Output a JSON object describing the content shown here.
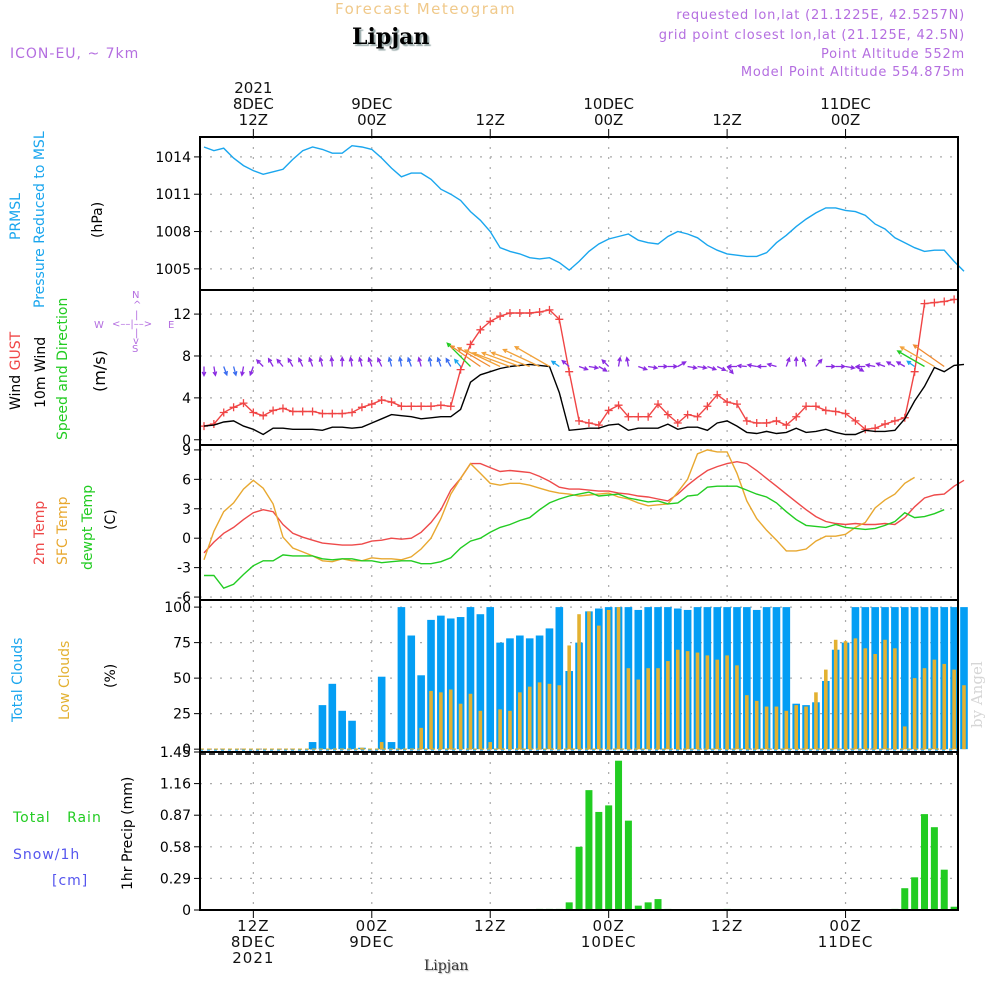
{
  "header": {
    "title": "Forecast Meteogram",
    "location": "Lipjan",
    "model": "ICON-EU, ~ 7km",
    "requested": "requested lon,lat (21.1225E, 42.5257N)",
    "grid_point": "grid point closest lon,lat (21.125E, 42.5N)",
    "point_altitude": "Point Altitude 552m",
    "model_altitude": "Model Point Altitude 554.875m"
  },
  "footer": {
    "location": "Lipjan",
    "watermark": "by Angel"
  },
  "colors": {
    "pressure": "#1aa6ee",
    "gust": "#f04545",
    "wind": "#000000",
    "temp2m": "#ee4a4a",
    "sfc": "#e8a830",
    "dewpt": "#22cc22",
    "total_clouds": "#049ef4",
    "low_clouds": "#e3b131",
    "rain": "#22cc22",
    "snow": "#5555ee",
    "meta": "#b46ee0",
    "compass": "#b46ee0"
  },
  "top_axis": [
    {
      "lines": [
        "2021",
        "8DEC",
        "12Z"
      ],
      "hour": 5
    },
    {
      "lines": [
        "9DEC",
        "00Z"
      ],
      "hour": 17
    },
    {
      "lines": [
        "12Z"
      ],
      "hour": 29
    },
    {
      "lines": [
        "10DEC",
        "00Z"
      ],
      "hour": 41
    },
    {
      "lines": [
        "12Z"
      ],
      "hour": 53
    },
    {
      "lines": [
        "11DEC",
        "00Z"
      ],
      "hour": 65
    }
  ],
  "bottom_axis": [
    {
      "lines": [
        "12Z",
        "8DEC",
        "2021"
      ],
      "hour": 5
    },
    {
      "lines": [
        "00Z",
        "9DEC"
      ],
      "hour": 17
    },
    {
      "lines": [
        "12Z"
      ],
      "hour": 29
    },
    {
      "lines": [
        "00Z",
        "10DEC"
      ],
      "hour": 41
    },
    {
      "lines": [
        "12Z"
      ],
      "hour": 53
    },
    {
      "lines": [
        "00Z",
        "11DEC"
      ],
      "hour": 65
    }
  ],
  "labels": {
    "pressure": {
      "l1": "PRMSL",
      "l2": "Pressure Reduced to MSL",
      "unit": "(hPa)"
    },
    "wind": {
      "gust_a": "Wind ",
      "gust_b": "GUST",
      "wind": "10m Wind",
      "dir": "Speed and Direction",
      "unit": "(m/s)"
    },
    "compass": {
      "n": "N",
      "s": "S",
      "e": "E",
      "w": "W"
    },
    "temp": {
      "t2m": "2m Temp",
      "sfc": "SFC Temp",
      "dew": "dewpt Temp",
      "unit": "(C)"
    },
    "clouds": {
      "total": "Total Clouds",
      "low": "Low Clouds",
      "unit": "(%)"
    },
    "precip": {
      "rain_a": "Total",
      "rain_b": "Rain",
      "snow": "Snow/1h",
      "snow_unit": "[cm]",
      "unit": "1hr Precip (mm)"
    }
  },
  "chart_data": [
    {
      "type": "line",
      "title": "PRMSL Pressure Reduced to MSL",
      "ylabel": "(hPa)",
      "ylim": [
        1003.3,
        1015.6
      ],
      "yticks": [
        1005,
        1008,
        1011,
        1014
      ],
      "x_start": "8DEC 07Z",
      "x_step_hours": 1,
      "grid": true,
      "series": [
        {
          "name": "PRMSL",
          "values": [
            1014.8,
            1014.5,
            1014.7,
            1013.9,
            1013.3,
            1012.9,
            1012.6,
            1012.8,
            1013.0,
            1013.8,
            1014.5,
            1014.8,
            1014.6,
            1014.3,
            1014.3,
            1014.9,
            1014.8,
            1014.6,
            1013.9,
            1013.1,
            1012.4,
            1012.7,
            1012.7,
            1012.2,
            1011.4,
            1011.0,
            1010.5,
            1009.6,
            1008.9,
            1008.0,
            1006.7,
            1006.4,
            1006.2,
            1005.9,
            1005.8,
            1005.9,
            1005.5,
            1004.9,
            1005.6,
            1006.4,
            1007.0,
            1007.4,
            1007.6,
            1007.8,
            1007.3,
            1007.1,
            1007.0,
            1007.6,
            1008.0,
            1007.8,
            1007.5,
            1006.9,
            1006.5,
            1006.2,
            1006.1,
            1006.0,
            1006.0,
            1006.3,
            1007.1,
            1007.7,
            1008.4,
            1009.0,
            1009.5,
            1009.9,
            1009.9,
            1009.7,
            1009.6,
            1009.3,
            1008.6,
            1008.2,
            1007.5,
            1007.1,
            1006.7,
            1006.4,
            1006.5,
            1006.5,
            1005.6,
            1004.8
          ]
        }
      ]
    },
    {
      "type": "line",
      "title": "Wind GUST / 10m Wind Speed and Direction",
      "ylabel": "(m/s)",
      "ylim": [
        -0.5,
        14.3
      ],
      "yticks": [
        0,
        4,
        8,
        12
      ],
      "x_start": "8DEC 07Z",
      "x_step_hours": 1,
      "grid": true,
      "series": [
        {
          "name": "Wind GUST",
          "values": [
            1.3,
            1.5,
            2.6,
            3.1,
            3.5,
            2.6,
            2.3,
            2.8,
            3.0,
            2.7,
            2.7,
            2.7,
            2.5,
            2.5,
            2.5,
            2.6,
            3.1,
            3.4,
            3.8,
            3.6,
            3.2,
            3.2,
            3.2,
            3.2,
            3.3,
            3.2,
            6.7,
            9.1,
            10.5,
            11.3,
            11.8,
            12.1,
            12.1,
            12.1,
            12.2,
            12.4,
            11.5,
            6.5,
            1.8,
            1.6,
            1.4,
            2.8,
            3.3,
            2.2,
            2.2,
            2.2,
            3.4,
            2.4,
            1.6,
            2.4,
            2.2,
            3.2,
            4.3,
            3.6,
            3.4,
            1.8,
            1.6,
            1.6,
            1.8,
            1.4,
            2.2,
            3.2,
            3.2,
            2.8,
            2.7,
            2.5,
            1.8,
            1.0,
            1.1,
            1.5,
            1.8,
            2.1,
            6.5,
            13.0,
            13.1,
            13.2,
            13.4
          ]
        },
        {
          "name": "10m Wind",
          "values": [
            1.3,
            1.4,
            1.7,
            1.8,
            1.3,
            1.0,
            0.5,
            1.1,
            1.1,
            1.0,
            1.0,
            1.0,
            0.9,
            1.2,
            1.2,
            1.1,
            1.2,
            1.6,
            2.0,
            2.4,
            2.3,
            2.2,
            2.0,
            2.1,
            2.2,
            2.2,
            2.9,
            5.5,
            6.2,
            6.5,
            6.8,
            7.0,
            7.1,
            7.2,
            7.1,
            7.0,
            4.5,
            0.9,
            1.0,
            1.1,
            1.1,
            1.4,
            1.5,
            0.9,
            1.1,
            1.1,
            1.1,
            1.5,
            1.0,
            1.2,
            1.2,
            0.9,
            1.6,
            1.8,
            1.3,
            0.7,
            0.6,
            0.8,
            0.6,
            0.7,
            1.1,
            0.7,
            0.8,
            1.0,
            0.7,
            0.5,
            0.5,
            0.9,
            0.8,
            0.8,
            0.9,
            2.0,
            3.7,
            5.1,
            6.9,
            6.5,
            7.1,
            7.2
          ]
        }
      ],
      "direction_arrows": {
        "note": "arrow direction in degrees (0=N up, 90=E) the arrow points to, colored by speed",
        "points_to_deg": [
          180,
          170,
          160,
          165,
          190,
          200,
          315,
          330,
          320,
          330,
          335,
          340,
          345,
          355,
          0,
          350,
          345,
          340,
          335,
          345,
          350,
          340,
          345,
          350,
          340,
          330,
          320,
          315,
          305,
          300,
          295,
          290,
          290,
          290,
          295,
          300,
          305,
          310,
          110,
          100,
          120,
          315,
          10,
          350,
          110,
          100,
          90,
          90,
          60,
          100,
          100,
          110,
          115,
          140,
          270,
          275,
          280,
          270,
          285,
          20,
          0,
          340,
          40,
          90,
          90,
          100,
          120,
          270,
          280,
          290,
          300,
          300,
          305,
          300,
          300,
          305
        ]
      }
    },
    {
      "type": "line",
      "title": "2m Temp / SFC Temp / dewpt Temp",
      "ylabel": "(C)",
      "ylim": [
        -6.3,
        9.5
      ],
      "yticks": [
        -6,
        -3,
        0,
        3,
        6,
        9
      ],
      "x_start": "8DEC 07Z",
      "x_step_hours": 1,
      "grid": true,
      "series": [
        {
          "name": "2m Temp",
          "values": [
            -1.5,
            -0.4,
            0.5,
            1.1,
            1.9,
            2.6,
            2.9,
            2.7,
            1.4,
            0.5,
            0.1,
            -0.2,
            -0.5,
            -0.6,
            -0.7,
            -0.7,
            -0.6,
            -0.3,
            -0.2,
            0.0,
            -0.1,
            0.0,
            0.6,
            1.6,
            2.9,
            4.9,
            6.1,
            7.6,
            7.6,
            7.2,
            6.8,
            6.9,
            6.8,
            6.7,
            6.3,
            5.8,
            5.2,
            5.0,
            5.0,
            4.9,
            4.8,
            4.8,
            4.6,
            4.5,
            4.3,
            4.2,
            4.0,
            3.8,
            4.5,
            5.4,
            6.2,
            6.9,
            7.3,
            7.6,
            7.8,
            7.6,
            6.9,
            6.1,
            5.3,
            4.5,
            3.7,
            2.9,
            2.2,
            1.7,
            1.5,
            1.4,
            1.5,
            1.4,
            1.4,
            1.5,
            1.4,
            2.1,
            3.2,
            4.1,
            4.4,
            4.5,
            5.3,
            5.9
          ]
        },
        {
          "name": "SFC Temp",
          "values": [
            -2.2,
            0.7,
            2.7,
            3.6,
            5.0,
            5.9,
            5.1,
            3.5,
            0.1,
            -1.0,
            -1.4,
            -1.8,
            -2.3,
            -2.4,
            -2.1,
            -2.3,
            -2.3,
            -2.0,
            -2.1,
            -2.1,
            -2.2,
            -1.9,
            -1.1,
            0.0,
            2.0,
            4.5,
            6.1,
            7.6,
            6.6,
            5.6,
            5.4,
            5.6,
            5.6,
            5.4,
            5.1,
            4.8,
            4.6,
            4.5,
            4.3,
            4.4,
            4.5,
            4.6,
            4.2,
            4.0,
            3.6,
            3.3,
            3.4,
            3.5,
            4.7,
            6.0,
            8.6,
            9.0,
            8.8,
            8.8,
            6.6,
            3.8,
            2.0,
            0.8,
            -0.2,
            -1.3,
            -1.3,
            -1.1,
            -0.3,
            0.2,
            0.2,
            0.4,
            1.1,
            1.6,
            3.1,
            3.9,
            4.5,
            5.6,
            6.2
          ]
        },
        {
          "name": "dewpt Temp",
          "values": [
            -3.8,
            -3.8,
            -5.1,
            -4.7,
            -3.7,
            -2.8,
            -2.3,
            -2.3,
            -1.7,
            -1.8,
            -1.8,
            -1.8,
            -2.1,
            -2.2,
            -2.1,
            -2.1,
            -2.3,
            -2.3,
            -2.5,
            -2.4,
            -2.3,
            -2.3,
            -2.6,
            -2.6,
            -2.4,
            -2.0,
            -1.0,
            -0.3,
            0.0,
            0.6,
            1.1,
            1.4,
            1.8,
            2.1,
            2.9,
            3.6,
            4.0,
            4.3,
            4.5,
            4.7,
            4.3,
            4.4,
            4.5,
            4.1,
            3.9,
            3.7,
            3.8,
            3.5,
            3.6,
            4.3,
            4.4,
            5.2,
            5.3,
            5.3,
            5.3,
            4.9,
            4.5,
            4.2,
            3.6,
            2.7,
            1.9,
            1.3,
            1.2,
            1.1,
            1.4,
            1.1,
            1.0,
            0.9,
            1.0,
            1.3,
            1.7,
            2.6,
            2.1,
            2.2,
            2.5,
            2.9
          ]
        }
      ]
    },
    {
      "type": "bar",
      "title": "Total Clouds / Low Clouds",
      "ylabel": "(%)",
      "ylim": [
        -2,
        105
      ],
      "yticks": [
        0,
        25,
        50,
        75,
        100
      ],
      "x_start": "8DEC 07Z",
      "x_step_hours": 1,
      "grid": true,
      "series": [
        {
          "name": "Total Clouds",
          "values": [
            0,
            0,
            0,
            0,
            0,
            0,
            0,
            0,
            0,
            0,
            0,
            5,
            31,
            46,
            27,
            20,
            1,
            0,
            51,
            5,
            100,
            80,
            52,
            91,
            94,
            92,
            93,
            100,
            95,
            100,
            75,
            78,
            80,
            78,
            80,
            85,
            100,
            55,
            75,
            97,
            99,
            100,
            100,
            100,
            98,
            100,
            100,
            100,
            99,
            98,
            100,
            100,
            100,
            100,
            100,
            100,
            98,
            100,
            100,
            100,
            32,
            31,
            33,
            48,
            70,
            75,
            100,
            100,
            100,
            100,
            100,
            100,
            100,
            100,
            100,
            100,
            100,
            100
          ]
        },
        {
          "name": "Low Clouds",
          "values": [
            0,
            0,
            0,
            0,
            0,
            0,
            0,
            0,
            0,
            0,
            0,
            0,
            0,
            0,
            0,
            0,
            1,
            0,
            5,
            0,
            0,
            0,
            15,
            41,
            40,
            42,
            32,
            39,
            27,
            5,
            28,
            27,
            40,
            44,
            47,
            46,
            45,
            73,
            95,
            97,
            87,
            98,
            100,
            57,
            49,
            57,
            57,
            62,
            70,
            69,
            68,
            66,
            63,
            66,
            59,
            38,
            34,
            30,
            30,
            27,
            31,
            30,
            40,
            56,
            77,
            76,
            78,
            71,
            67,
            77,
            71,
            16,
            50,
            57,
            63,
            60,
            56,
            45
          ]
        }
      ]
    },
    {
      "type": "bar",
      "title": "Total Rain / Snow per 1h",
      "ylabel": "1hr Precip (mm)",
      "ylim": [
        0,
        1.45
      ],
      "yticks": [
        0,
        0.29,
        0.58,
        0.87,
        1.16,
        1.45
      ],
      "x_start": "8DEC 07Z",
      "x_step_hours": 1,
      "grid": true,
      "series": [
        {
          "name": "Total Rain",
          "values": [
            0,
            0,
            0,
            0,
            0,
            0,
            0,
            0,
            0,
            0,
            0,
            0,
            0,
            0,
            0,
            0,
            0,
            0,
            0,
            0,
            0,
            0,
            0,
            0,
            0,
            0,
            0,
            0,
            0,
            0,
            0,
            0,
            0,
            0,
            0.01,
            0.01,
            0.01,
            0.07,
            0.58,
            1.1,
            0.9,
            0.96,
            1.37,
            0.82,
            0.04,
            0.07,
            0.1,
            0.01,
            0,
            0,
            0,
            0,
            0,
            0.01,
            0,
            0,
            0,
            0,
            0,
            0,
            0,
            0,
            0,
            0,
            0,
            0,
            0,
            0,
            0,
            0,
            0.01,
            0.2,
            0.3,
            0.88,
            0.76,
            0.37,
            0.03
          ]
        },
        {
          "name": "Snow/1h",
          "values": []
        }
      ]
    }
  ]
}
